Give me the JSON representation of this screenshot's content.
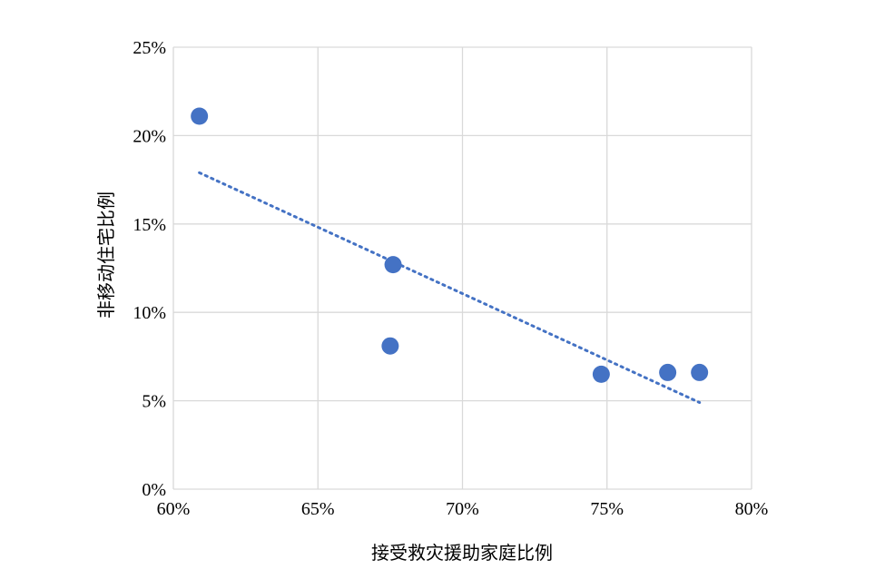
{
  "chart_data": {
    "type": "scatter",
    "title": "",
    "xlabel": "接受救灾援助家庭比例",
    "ylabel": "非移动住宅比例",
    "xlim": [
      60,
      80
    ],
    "ylim": [
      0,
      25
    ],
    "x_ticks": [
      60,
      65,
      70,
      75,
      80
    ],
    "y_ticks": [
      0,
      5,
      10,
      15,
      20,
      25
    ],
    "tick_format": "percent",
    "x_tick_labels": [
      "60%",
      "65%",
      "70%",
      "75%",
      "80%"
    ],
    "y_tick_labels": [
      "0%",
      "5%",
      "10%",
      "15%",
      "20%",
      "25%"
    ],
    "grid": true,
    "legend": "none",
    "series": [
      {
        "points": [
          {
            "x": 60.9,
            "y": 21.1
          },
          {
            "x": 67.6,
            "y": 12.7
          },
          {
            "x": 67.5,
            "y": 8.1
          },
          {
            "x": 74.8,
            "y": 6.5
          },
          {
            "x": 77.1,
            "y": 6.6
          },
          {
            "x": 78.2,
            "y": 6.6
          }
        ]
      }
    ],
    "trendline": {
      "type": "linear",
      "style": "dotted",
      "x_range": [
        60.9,
        78.2
      ],
      "y_start": 17.9,
      "y_end": 4.9
    },
    "colors": {
      "points": "#4472c4",
      "trendline": "#4472c4",
      "grid": "#d9d9d9"
    }
  }
}
